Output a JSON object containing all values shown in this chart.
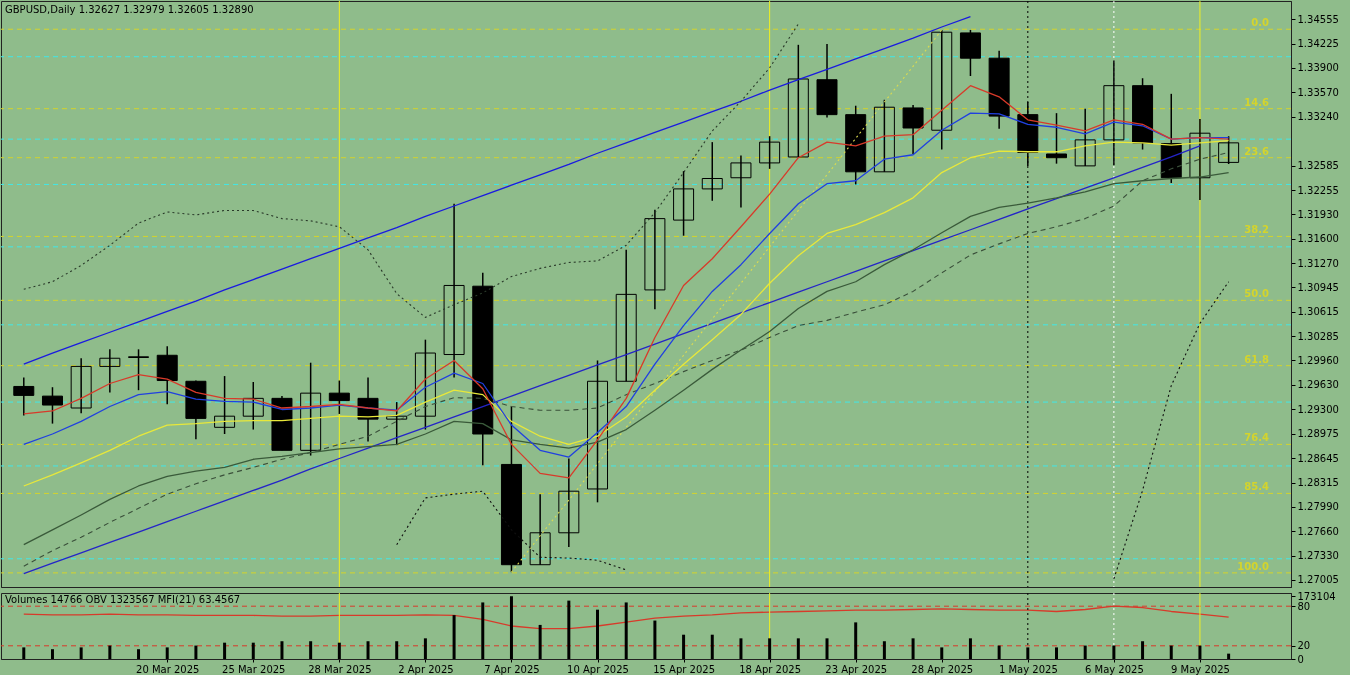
{
  "chart_data": [
    {
      "type": "candlestick",
      "title": "GBPUSD,Daily  1.32627 1.32979 1.32605 1.32890",
      "categories": [
        null,
        null,
        null,
        null,
        null,
        "20 Mar 2025",
        null,
        null,
        "25 Mar 2025",
        null,
        null,
        "28 Mar 2025",
        null,
        null,
        "2 Apr 2025",
        null,
        null,
        "7 Apr 2025",
        null,
        null,
        "10 Apr 2025",
        null,
        null,
        "15 Apr 2025",
        null,
        null,
        "18 Apr 2025",
        null,
        null,
        "23 Apr 2025",
        null,
        null,
        "28 Apr 2025",
        null,
        null,
        "1 May 2025",
        null,
        null,
        "6 May 2025",
        null,
        null,
        "9 May 2025",
        null
      ],
      "ohlc": [
        [
          1.2961,
          1.2973,
          1.2922,
          1.2949
        ],
        [
          1.2948,
          1.296,
          1.2911,
          1.2936
        ],
        [
          1.2932,
          1.2999,
          1.2925,
          1.2988
        ],
        [
          1.2988,
          1.3011,
          1.2953,
          1.2999
        ],
        [
          1.3,
          1.3011,
          1.2956,
          1.3001
        ],
        [
          1.3003,
          1.3015,
          1.2937,
          1.2969
        ],
        [
          1.2968,
          1.2969,
          1.289,
          1.2918
        ],
        [
          1.2906,
          1.2975,
          1.2897,
          1.2921
        ],
        [
          1.2921,
          1.2967,
          1.2903,
          1.2945
        ],
        [
          1.2945,
          1.2948,
          1.2875,
          1.2875
        ],
        [
          1.2875,
          1.2993,
          1.2868,
          1.2952
        ],
        [
          1.2952,
          1.2969,
          1.2924,
          1.2942
        ],
        [
          1.2945,
          1.2973,
          1.2887,
          1.2917
        ],
        [
          1.2917,
          1.294,
          1.2882,
          1.2921
        ],
        [
          1.2921,
          1.3024,
          1.2903,
          1.3006
        ],
        [
          1.3004,
          1.3207,
          1.2973,
          1.3097
        ],
        [
          1.3096,
          1.3114,
          1.2855,
          1.2897
        ],
        [
          1.2856,
          1.2934,
          1.2711,
          1.2721
        ],
        [
          1.2721,
          1.2816,
          1.2721,
          1.2764
        ],
        [
          1.2764,
          1.2864,
          1.2745,
          1.282
        ],
        [
          1.2823,
          1.2996,
          1.2805,
          1.2968
        ],
        [
          1.2968,
          1.3145,
          1.2968,
          1.3085
        ],
        [
          1.3091,
          1.3199,
          1.3065,
          1.3187
        ],
        [
          1.3185,
          1.3251,
          1.3164,
          1.3227
        ],
        [
          1.3227,
          1.329,
          1.3211,
          1.3241
        ],
        [
          1.3242,
          1.3272,
          1.3202,
          1.3262
        ],
        [
          1.3262,
          1.3298,
          1.3254,
          1.329
        ],
        [
          1.327,
          1.3421,
          1.327,
          1.3375
        ],
        [
          1.3374,
          1.3422,
          1.3323,
          1.3327
        ],
        [
          1.3327,
          1.3339,
          1.3233,
          1.325
        ],
        [
          1.325,
          1.3347,
          1.325,
          1.3337
        ],
        [
          1.3336,
          1.334,
          1.3274,
          1.3309
        ],
        [
          1.3306,
          1.3441,
          1.328,
          1.3438
        ],
        [
          1.3437,
          1.3441,
          1.3379,
          1.3403
        ],
        [
          1.3403,
          1.3413,
          1.3308,
          1.3325
        ],
        [
          1.3327,
          1.3344,
          1.3258,
          1.3276
        ],
        [
          1.3274,
          1.3329,
          1.3261,
          1.3269
        ],
        [
          1.3258,
          1.3335,
          1.3258,
          1.3293
        ],
        [
          1.3293,
          1.34,
          1.3259,
          1.3366
        ],
        [
          1.3366,
          1.3376,
          1.328,
          1.3289
        ],
        [
          1.3288,
          1.3355,
          1.3235,
          1.3242
        ],
        [
          1.3242,
          1.3321,
          1.3212,
          1.3302
        ],
        [
          1.32627,
          1.32979,
          1.32605,
          1.3289
        ]
      ],
      "series": [
        {
          "type": "line",
          "color": "#1a1ae0",
          "line_style": "solid",
          "values": [
            1.2991,
            1.3006,
            1.302,
            1.3034,
            1.3048,
            1.3062,
            1.3076,
            1.3091,
            1.3105,
            1.3119,
            1.3133,
            1.3147,
            1.3161,
            1.3175,
            1.319,
            1.3204,
            1.3218,
            1.3232,
            1.3246,
            1.326,
            1.3275,
            1.3289,
            1.3303,
            1.3317,
            1.3331,
            1.3345,
            1.336,
            1.3374,
            1.3388,
            1.3402,
            1.3416,
            1.343,
            1.3445,
            1.3459,
            null,
            null,
            null,
            null,
            null,
            null,
            null,
            null,
            null
          ]
        },
        {
          "type": "line",
          "color": "#2424c8",
          "line_style": "solid",
          "values": [
            1.2709,
            1.2723,
            1.2737,
            1.2751,
            1.2765,
            1.2779,
            1.2793,
            1.2807,
            1.2821,
            1.2835,
            1.285,
            1.2864,
            1.2878,
            1.2892,
            1.2906,
            1.292,
            1.2934,
            1.2948,
            1.2962,
            1.2976,
            1.299,
            1.3004,
            1.3018,
            1.3032,
            1.3046,
            1.306,
            1.3074,
            1.3088,
            1.3102,
            1.3116,
            1.313,
            1.3144,
            1.3158,
            1.3172,
            1.3186,
            1.32,
            1.3214,
            1.3228,
            1.3242,
            1.3256,
            1.327,
            1.3285,
            null
          ]
        },
        {
          "type": "line",
          "color": "#dcdc50",
          "line_style": "dotted",
          "values": [
            null,
            null,
            null,
            null,
            null,
            null,
            null,
            null,
            null,
            null,
            null,
            null,
            null,
            null,
            null,
            null,
            null,
            1.2711,
            1.276,
            1.2808,
            1.2857,
            1.2906,
            1.2954,
            1.3003,
            1.3052,
            1.31,
            1.3149,
            1.3198,
            1.3246,
            1.3295,
            1.3344,
            1.3392,
            1.3441,
            null,
            null,
            null,
            null,
            null,
            null,
            null,
            null,
            null,
            null
          ]
        },
        {
          "type": "line",
          "color": "#2a3a2a",
          "line_style": "dotted",
          "values": [
            1.3092,
            1.3102,
            1.3124,
            1.3151,
            1.3181,
            1.3196,
            1.3192,
            1.3198,
            1.3198,
            1.3187,
            1.3184,
            1.3176,
            1.3145,
            1.3086,
            1.3054,
            1.3071,
            1.3087,
            1.3109,
            1.312,
            1.3128,
            1.313,
            1.3151,
            1.3195,
            1.3249,
            1.3305,
            1.3345,
            1.339,
            1.3449,
            null,
            null,
            null,
            null,
            null,
            null,
            null,
            null,
            null,
            null,
            null,
            null,
            null,
            null,
            null
          ]
        },
        {
          "type": "line",
          "color": "#101010",
          "line_style": "dotted",
          "values": [
            null,
            null,
            null,
            null,
            null,
            null,
            null,
            null,
            null,
            null,
            null,
            null,
            null,
            1.2748,
            1.2811,
            1.2816,
            1.282,
            1.2768,
            1.2731,
            1.273,
            1.2727,
            1.2714,
            null,
            null,
            null,
            null,
            null,
            null,
            null,
            null,
            null,
            null,
            null,
            null,
            null,
            null,
            null,
            null,
            1.2702,
            1.2821,
            1.2962,
            1.3046,
            1.3102
          ]
        },
        {
          "type": "line",
          "color": "#3a4f3a",
          "line_style": "dashed",
          "values": [
            1.2719,
            1.274,
            1.2758,
            1.2778,
            1.2797,
            1.2816,
            1.283,
            1.2842,
            1.2852,
            1.2863,
            1.2872,
            1.2883,
            1.2894,
            1.2914,
            1.2934,
            1.2946,
            1.2945,
            1.2934,
            1.2929,
            1.2929,
            1.2932,
            1.295,
            1.2965,
            1.2981,
            1.2996,
            1.301,
            1.3027,
            1.3043,
            1.305,
            1.3061,
            1.3071,
            1.3089,
            1.3114,
            1.3138,
            1.3153,
            1.3167,
            1.3176,
            1.3187,
            1.3204,
            1.3238,
            1.3254,
            1.3267,
            1.3276
          ]
        },
        {
          "type": "line",
          "color": "#3a5a3a",
          "line_style": "solid",
          "values": [
            1.2748,
            1.2768,
            1.2788,
            1.2809,
            1.2827,
            1.284,
            1.2847,
            1.2852,
            1.2863,
            1.2867,
            1.2872,
            1.2877,
            1.288,
            1.2883,
            1.2897,
            1.2914,
            1.2911,
            1.2889,
            1.2883,
            1.2878,
            1.2886,
            1.2903,
            1.2929,
            1.2956,
            1.2984,
            1.301,
            1.3035,
            1.3066,
            1.3089,
            1.3102,
            1.3125,
            1.3145,
            1.3168,
            1.319,
            1.3202,
            1.3208,
            1.3215,
            1.3223,
            1.3234,
            1.3238,
            1.3241,
            1.3243,
            1.3249
          ]
        },
        {
          "type": "line",
          "color": "#e8e83a",
          "line_style": "solid",
          "values": [
            1.2827,
            1.2842,
            1.2858,
            1.2875,
            1.2894,
            1.2909,
            1.2911,
            1.2914,
            1.2915,
            1.2915,
            1.2918,
            1.2921,
            1.292,
            1.2922,
            1.294,
            1.2956,
            1.295,
            1.2914,
            1.2894,
            1.2883,
            1.2894,
            1.292,
            1.2956,
            1.2991,
            1.3024,
            1.3058,
            1.31,
            1.3137,
            1.3167,
            1.3179,
            1.3195,
            1.3215,
            1.3249,
            1.3269,
            1.3278,
            1.3277,
            1.3277,
            1.3285,
            1.329,
            1.3289,
            1.3286,
            1.3289,
            1.3292
          ]
        },
        {
          "type": "line",
          "color": "#2040e0",
          "line_style": "solid",
          "values": [
            1.2883,
            1.2897,
            1.2914,
            1.2934,
            1.295,
            1.2954,
            1.2944,
            1.2941,
            1.294,
            1.293,
            1.2932,
            1.2936,
            1.2932,
            1.2929,
            1.296,
            1.2979,
            1.2965,
            1.2909,
            1.2875,
            1.2866,
            1.2899,
            1.2934,
            1.2991,
            1.3043,
            1.3089,
            1.3125,
            1.3167,
            1.3207,
            1.3234,
            1.3238,
            1.3267,
            1.3273,
            1.3306,
            1.3329,
            1.3328,
            1.3314,
            1.331,
            1.3301,
            1.3317,
            1.3312,
            1.3294,
            1.3296,
            1.3296
          ]
        },
        {
          "type": "line",
          "color": "#d83a2a",
          "line_style": "solid",
          "values": [
            1.2924,
            1.2928,
            1.2945,
            1.2965,
            1.2977,
            1.2971,
            1.2953,
            1.2945,
            1.2944,
            1.2932,
            1.2934,
            1.2937,
            1.2932,
            1.2928,
            1.2971,
            1.2996,
            1.2958,
            1.2883,
            1.2844,
            1.2838,
            1.2889,
            1.2945,
            1.3027,
            1.3097,
            1.3133,
            1.3176,
            1.322,
            1.3269,
            1.329,
            1.3285,
            1.3298,
            1.33,
            1.3333,
            1.3366,
            1.3351,
            1.332,
            1.3313,
            1.3305,
            1.332,
            1.3314,
            1.3294,
            1.3296,
            1.3294
          ]
        }
      ],
      "ylim": [
        1.2691,
        1.348
      ],
      "yticks": [
        1.34555,
        1.34225,
        {
          "value": 1.339,
          "label": "1.33900"
        },
        {
          "value": 1.3357,
          "label": "1.33570"
        },
        {
          "value": 1.3324,
          "label": "1.33240"
        },
        1.32585,
        1.32255,
        {
          "value": 1.3193,
          "label": "1.31930"
        },
        {
          "value": 1.316,
          "label": "1.31600"
        },
        {
          "value": 1.3127,
          "label": "1.31270"
        },
        1.30945,
        1.30615,
        1.30285,
        {
          "value": 1.2996,
          "label": "1.29960"
        },
        {
          "value": 1.2963,
          "label": "1.29630"
        },
        {
          "value": 1.293,
          "label": "1.29300"
        },
        1.28975,
        1.28645,
        1.28315,
        {
          "value": 1.2799,
          "label": "1.27990"
        },
        {
          "value": 1.2766,
          "label": "1.27660"
        },
        {
          "value": 1.2733,
          "label": "1.27330"
        },
        1.27005
      ],
      "tick_labels": "y",
      "annotations": [
        {
          "text": "0.0",
          "y": 1.3442
        },
        {
          "text": "14.6",
          "y": 1.3335
        },
        {
          "text": "23.6",
          "y": 1.3269
        },
        {
          "text": "38.2",
          "y": 1.3163
        },
        {
          "text": "50.0",
          "y": 1.3077
        },
        {
          "text": "61.8",
          "y": 1.2989
        },
        {
          "text": "76.4",
          "y": 1.2883
        },
        {
          "text": "85.4",
          "y": 1.2817
        },
        {
          "text": "100.0",
          "y": 1.271
        }
      ],
      "ref_lines": [
        {
          "axis": "y",
          "value": 1.3405,
          "color": "#40e8e8",
          "line_style": "dashed"
        },
        {
          "axis": "y",
          "value": 1.3294,
          "color": "#40e8e8",
          "line_style": "dashed"
        },
        {
          "axis": "y",
          "value": 1.3233,
          "color": "#40e8e8",
          "line_style": "dashed"
        },
        {
          "axis": "y",
          "value": 1.3149,
          "color": "#40e8e8",
          "line_style": "dashed"
        },
        {
          "axis": "y",
          "value": 1.3044,
          "color": "#40e8e8",
          "line_style": "dashed"
        },
        {
          "axis": "y",
          "value": 1.294,
          "color": "#40e8e8",
          "line_style": "dashed"
        },
        {
          "axis": "y",
          "value": 1.2854,
          "color": "#40e8e8",
          "line_style": "dashed"
        },
        {
          "axis": "y",
          "value": 1.2729,
          "color": "#40e8e8",
          "line_style": "dashed"
        },
        {
          "axis": "y",
          "value": 1.3442,
          "color": "#d4d42c",
          "line_style": "dashed"
        },
        {
          "axis": "y",
          "value": 1.3335,
          "color": "#d4d42c",
          "line_style": "dashed"
        },
        {
          "axis": "y",
          "value": 1.3269,
          "color": "#d4d42c",
          "line_style": "dashed"
        },
        {
          "axis": "y",
          "value": 1.3163,
          "color": "#d4d42c",
          "line_style": "dashed"
        },
        {
          "axis": "y",
          "value": 1.3077,
          "color": "#d4d42c",
          "line_style": "dashed"
        },
        {
          "axis": "y",
          "value": 1.2989,
          "color": "#d4d42c",
          "line_style": "dashed"
        },
        {
          "axis": "y",
          "value": 1.2883,
          "color": "#d4d42c",
          "line_style": "dashed"
        },
        {
          "axis": "y",
          "value": 1.2817,
          "color": "#d4d42c",
          "line_style": "dashed"
        },
        {
          "axis": "y",
          "value": 1.271,
          "color": "#d4d42c",
          "line_style": "dashed"
        },
        {
          "axis": "x",
          "value": "28 Mar 2025",
          "color": "#f0f020",
          "line_style": "solid"
        },
        {
          "axis": "x",
          "value": "18 Apr 2025",
          "color": "#f0f020",
          "line_style": "solid"
        },
        {
          "axis": "x",
          "value": "9 May 2025",
          "color": "#f0f020",
          "line_style": "solid"
        },
        {
          "axis": "x",
          "value": "1 May 2025",
          "color": "#000000",
          "line_style": "dotted"
        },
        {
          "axis": "x",
          "value": "6 May 2025",
          "color": "#ffffff",
          "line_style": "dotted"
        }
      ]
    },
    {
      "type": "bar",
      "title": "Volumes 14766  OBV 1323567  MFI(21) 63.4567",
      "categories": [
        null,
        null,
        null,
        null,
        null,
        "20 Mar 2025",
        null,
        null,
        "25 Mar 2025",
        null,
        null,
        "28 Mar 2025",
        null,
        null,
        "2 Apr 2025",
        null,
        null,
        "7 Apr 2025",
        null,
        null,
        "10 Apr 2025",
        null,
        null,
        "15 Apr 2025",
        null,
        null,
        "18 Apr 2025",
        null,
        null,
        "23 Apr 2025",
        null,
        null,
        "28 Apr 2025",
        null,
        null,
        "1 May 2025",
        null,
        null,
        "6 May 2025",
        null,
        null,
        "9 May 2025",
        null
      ],
      "series": [
        {
          "type": "bar",
          "color": "#000000",
          "values": [
            32000,
            27000,
            32000,
            37000,
            27000,
            32000,
            37000,
            45000,
            45000,
            49000,
            49000,
            45000,
            49000,
            49000,
            57000,
            121000,
            156000,
            173000,
            94000,
            161000,
            136000,
            156000,
            106000,
            67000,
            67000,
            57000,
            57000,
            57000,
            57000,
            101000,
            49000,
            57000,
            32000,
            57000,
            37000,
            32000,
            32000,
            37000,
            37000,
            49000,
            37000,
            37000,
            14766
          ]
        },
        {
          "type": "line",
          "axis": "y2",
          "color": "#d83a2a",
          "values": [
            68,
            67,
            67,
            68,
            67,
            67,
            66,
            66,
            66,
            65,
            65,
            66,
            66,
            66,
            67,
            66,
            60,
            50,
            46,
            46,
            50,
            56,
            62,
            65,
            67,
            70,
            71,
            72,
            73,
            74,
            74,
            75,
            76,
            75,
            74,
            74,
            72,
            75,
            80,
            78,
            72,
            68,
            63.4567
          ]
        }
      ],
      "ylim": [
        0,
        182000
      ],
      "yticks": [
        0,
        173104
      ],
      "y2lim": [
        0,
        100
      ],
      "y2ticks": [
        20,
        80
      ],
      "ref_lines": [
        {
          "axis": "y2",
          "value": 80,
          "color": "#d83a2a",
          "line_style": "dashed"
        },
        {
          "axis": "y2",
          "value": 20,
          "color": "#d83a2a",
          "line_style": "dashed"
        },
        {
          "axis": "x",
          "value": "28 Mar 2025",
          "color": "#f0f020",
          "line_style": "solid"
        },
        {
          "axis": "x",
          "value": "18 Apr 2025",
          "color": "#f0f020",
          "line_style": "solid"
        },
        {
          "axis": "x",
          "value": "9 May 2025",
          "color": "#f0f020",
          "line_style": "solid"
        },
        {
          "axis": "x",
          "value": "1 May 2025",
          "color": "#000000",
          "line_style": "dotted"
        },
        {
          "axis": "x",
          "value": "6 May 2025",
          "color": "#ffffff",
          "line_style": "dotted"
        }
      ]
    }
  ]
}
